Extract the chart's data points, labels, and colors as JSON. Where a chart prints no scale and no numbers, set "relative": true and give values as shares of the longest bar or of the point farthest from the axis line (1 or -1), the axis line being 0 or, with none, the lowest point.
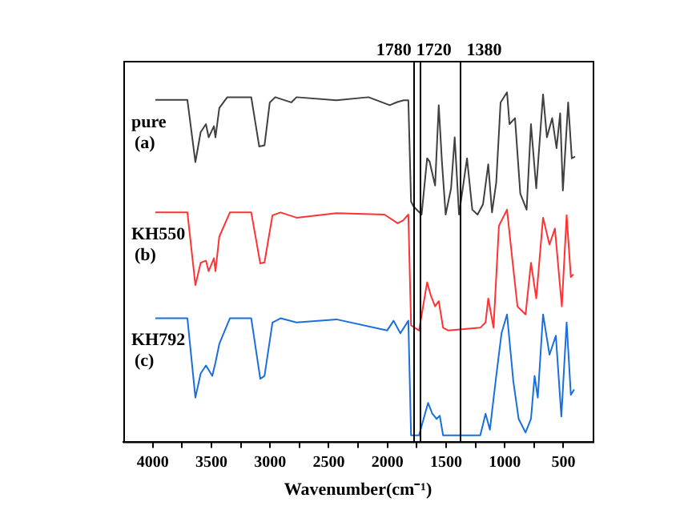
{
  "chart_data": {
    "type": "line",
    "relative": true,
    "xlabel": "Wavenumber(cm⁻¹)",
    "xlim": [
      4250,
      250
    ],
    "xticks": [
      4000,
      {
        "value": 3750,
        "label": null
      },
      3500,
      {
        "value": 3250,
        "label": null
      },
      3000,
      {
        "value": 2750,
        "label": null
      },
      2500,
      {
        "value": 2250,
        "label": null
      },
      2000,
      {
        "value": 1750,
        "label": null
      },
      1500,
      {
        "value": 1250,
        "label": null
      },
      1000,
      {
        "value": 750,
        "label": null
      },
      500
    ],
    "tick_labels": "x",
    "grid": false,
    "ref_lines": [
      {
        "axis": "x",
        "value": 1780,
        "label": "1780"
      },
      {
        "axis": "x",
        "value": 1720,
        "label": "1720"
      },
      {
        "axis": "x",
        "value": 1380,
        "label": "1380"
      }
    ],
    "series": [
      {
        "name": "pure (a)",
        "color": "#404040",
        "x": [
          3977,
          3704,
          3636,
          3591,
          3546,
          3523,
          3478,
          3465,
          3432,
          3364,
          3160,
          3092,
          3047,
          3002,
          2955,
          2819,
          2774,
          2434,
          2161,
          1980,
          1916,
          1862,
          1821,
          1798,
          1776,
          1708,
          1661,
          1640,
          1593,
          1562,
          1535,
          1503,
          1457,
          1426,
          1389,
          1321,
          1276,
          1231,
          1185,
          1140,
          1108,
          1072,
          1035,
          980,
          959,
          912,
          867,
          813,
          776,
          731,
          673,
          640,
          595,
          558,
          527,
          504,
          459,
          428,
          400
        ],
        "values": [
          0.978,
          0.978,
          0.8,
          0.886,
          0.909,
          0.871,
          0.903,
          0.871,
          0.955,
          0.986,
          0.986,
          0.845,
          0.848,
          0.971,
          0.986,
          0.971,
          0.986,
          0.977,
          0.986,
          0.963,
          0.972,
          0.977,
          0.977,
          0.687,
          0.673,
          0.65,
          0.811,
          0.802,
          0.733,
          0.963,
          0.802,
          0.65,
          0.725,
          0.871,
          0.65,
          0.811,
          0.664,
          0.65,
          0.679,
          0.794,
          0.656,
          0.742,
          0.971,
          1.0,
          0.909,
          0.926,
          0.71,
          0.664,
          0.909,
          0.725,
          0.994,
          0.871,
          0.926,
          0.84,
          0.94,
          0.719,
          0.971,
          0.811,
          0.816
        ]
      },
      {
        "name": "KH550 (b)",
        "color": "#ff3333",
        "x": [
          3977,
          3704,
          3636,
          3591,
          3546,
          3523,
          3478,
          3465,
          3432,
          3342,
          3160,
          3083,
          3047,
          2979,
          2910,
          2774,
          2434,
          2025,
          1912,
          1866,
          1821,
          1798,
          1730,
          1661,
          1630,
          1593,
          1562,
          1525,
          1480,
          1208,
          1163,
          1140,
          1095,
          1049,
          980,
          936,
          891,
          822,
          776,
          731,
          673,
          618,
          572,
          513,
          472,
          436,
          414
        ],
        "values": [
          0.656,
          0.656,
          0.448,
          0.512,
          0.518,
          0.488,
          0.525,
          0.488,
          0.587,
          0.656,
          0.656,
          0.51,
          0.513,
          0.648,
          0.656,
          0.641,
          0.654,
          0.65,
          0.625,
          0.633,
          0.65,
          0.333,
          0.318,
          0.456,
          0.419,
          0.387,
          0.402,
          0.326,
          0.318,
          0.326,
          0.341,
          0.41,
          0.326,
          0.618,
          0.664,
          0.525,
          0.387,
          0.364,
          0.512,
          0.41,
          0.641,
          0.564,
          0.61,
          0.387,
          0.648,
          0.471,
          0.479
        ]
      },
      {
        "name": "KH792 (c)",
        "color": "#1a6fdf",
        "x": [
          3977,
          3704,
          3636,
          3591,
          3546,
          3492,
          3465,
          3432,
          3342,
          3160,
          3083,
          3047,
          2979,
          2910,
          2774,
          2434,
          2002,
          1947,
          1889,
          1821,
          1798,
          1730,
          1653,
          1617,
          1580,
          1553,
          1525,
          1208,
          1163,
          1126,
          1072,
          1027,
          980,
          926,
          881,
          822,
          776,
          745,
          718,
          673,
          618,
          564,
          517,
          472,
          436,
          408
        ],
        "values": [
          0.353,
          0.353,
          0.126,
          0.195,
          0.218,
          0.188,
          0.226,
          0.28,
          0.353,
          0.353,
          0.18,
          0.188,
          0.341,
          0.353,
          0.341,
          0.35,
          0.318,
          0.346,
          0.31,
          0.346,
          0.018,
          0.018,
          0.111,
          0.08,
          0.065,
          0.074,
          0.018,
          0.018,
          0.08,
          0.034,
          0.188,
          0.31,
          0.364,
          0.172,
          0.065,
          0.026,
          0.065,
          0.188,
          0.126,
          0.364,
          0.249,
          0.303,
          0.072,
          0.341,
          0.134,
          0.149
        ]
      }
    ]
  }
}
